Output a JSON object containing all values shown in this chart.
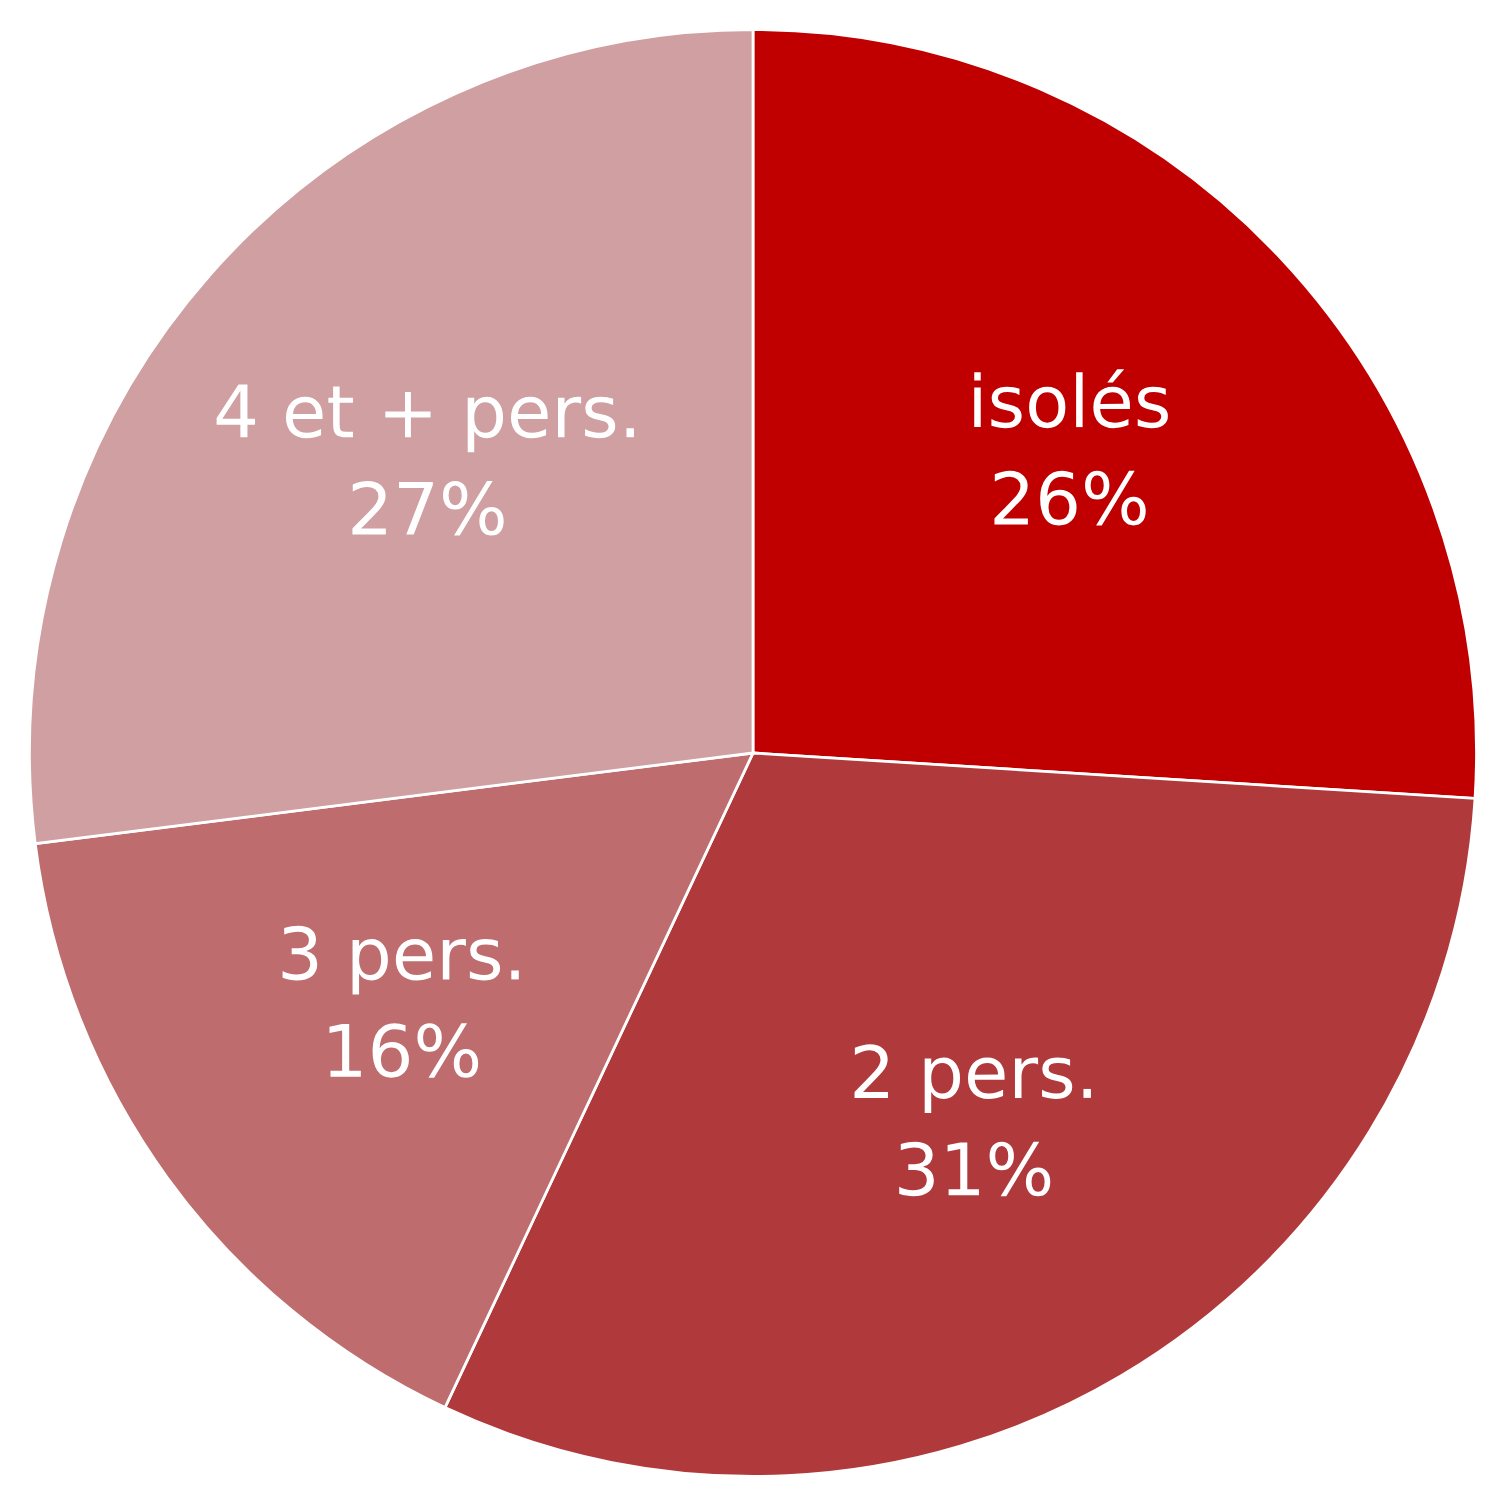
{
  "chart_data": {
    "type": "pie",
    "categories": [
      "isolés",
      "2 pers.",
      "3 pers.",
      "4 et + pers."
    ],
    "values": [
      26,
      31,
      16,
      27
    ],
    "colors": [
      "#c00000",
      "#b0393b",
      "#bf6c6e",
      "#cf9fa1"
    ],
    "value_labels": [
      "26%",
      "31%",
      "16%",
      "27%"
    ]
  }
}
